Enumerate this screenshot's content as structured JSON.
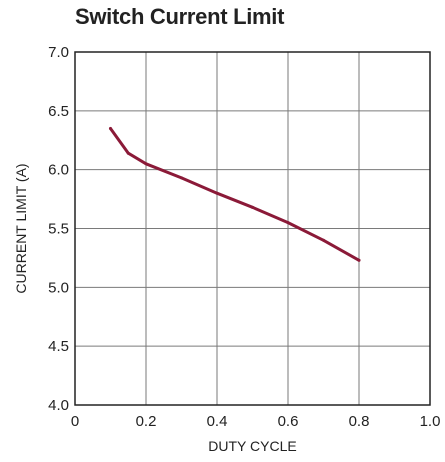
{
  "title": "Switch Current Limit",
  "chart_data": {
    "type": "line",
    "title": "Switch Current Limit",
    "xlabel": "DUTY CYCLE",
    "ylabel": "CURRENT LIMIT (A)",
    "xlim": [
      0,
      1.0
    ],
    "ylim": [
      4.0,
      7.0
    ],
    "xticks": [
      "0",
      "0.2",
      "0.4",
      "0.6",
      "0.8",
      "1.0"
    ],
    "yticks": [
      "4.0",
      "4.5",
      "5.0",
      "5.5",
      "6.0",
      "6.5",
      "7.0"
    ],
    "grid": true,
    "line_color": "#8b1a38",
    "series": [
      {
        "x": [
          0.1,
          0.15,
          0.2,
          0.3,
          0.4,
          0.5,
          0.6,
          0.7,
          0.8
        ],
        "y": [
          6.35,
          6.14,
          6.05,
          5.93,
          5.8,
          5.68,
          5.55,
          5.4,
          5.23
        ]
      }
    ]
  }
}
